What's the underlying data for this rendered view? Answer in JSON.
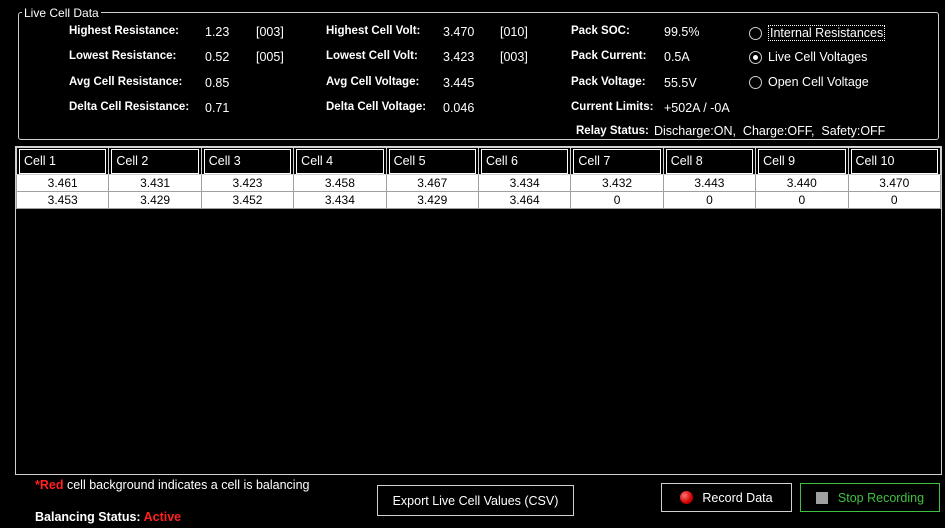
{
  "group": {
    "title": "Live Cell Data"
  },
  "stats": {
    "highest_resistance": {
      "label": "Highest Resistance:",
      "value": "1.23",
      "cell": "[003]"
    },
    "lowest_resistance": {
      "label": "Lowest Resistance:",
      "value": "0.52",
      "cell": "[005]"
    },
    "avg_resistance": {
      "label": "Avg Cell Resistance:",
      "value": "0.85"
    },
    "delta_resistance": {
      "label": "Delta Cell Resistance:",
      "value": "0.71"
    },
    "highest_volt": {
      "label": "Highest Cell Volt:",
      "value": "3.470",
      "cell": "[010]"
    },
    "lowest_volt": {
      "label": "Lowest Cell Volt:",
      "value": "3.423",
      "cell": "[003]"
    },
    "avg_voltage": {
      "label": "Avg Cell Voltage:",
      "value": "3.445"
    },
    "delta_voltage": {
      "label": "Delta Cell Voltage:",
      "value": "0.046"
    },
    "pack_soc": {
      "label": "Pack SOC:",
      "value": "99.5%"
    },
    "pack_current": {
      "label": "Pack Current:",
      "value": "0.5A"
    },
    "pack_voltage": {
      "label": "Pack Voltage:",
      "value": "55.5V"
    },
    "current_limits": {
      "label": "Current Limits:",
      "value": "+502A / -0A"
    },
    "relay_status": {
      "label": "Relay Status:",
      "value": "Discharge:ON,  Charge:OFF,  Safety:OFF"
    }
  },
  "modes": [
    {
      "label": "Internal Resistances",
      "checked": false
    },
    {
      "label": "Live Cell Voltages",
      "checked": true
    },
    {
      "label": "Open Cell Voltage",
      "checked": false
    }
  ],
  "table": {
    "columns": [
      "Cell 1",
      "Cell 2",
      "Cell 3",
      "Cell 4",
      "Cell 5",
      "Cell 6",
      "Cell 7",
      "Cell 8",
      "Cell 9",
      "Cell 10"
    ],
    "rows": [
      [
        "3.461",
        "3.431",
        "3.423",
        "3.458",
        "3.467",
        "3.434",
        "3.432",
        "3.443",
        "3.440",
        "3.470"
      ],
      [
        "3.453",
        "3.429",
        "3.452",
        "3.434",
        "3.429",
        "3.464",
        "0",
        "0",
        "0",
        "0"
      ]
    ]
  },
  "footer": {
    "note_star": "*",
    "note_red": "Red",
    "note_rest": " cell background indicates a cell is balancing",
    "balancing_label": "Balancing Status:",
    "balancing_value": "Active",
    "export_label": "Export Live Cell Values (CSV)",
    "record_label": "Record Data",
    "stop_label": "Stop Recording"
  },
  "colors": {
    "accent_red": "#ff2020",
    "stop_green": "#40c040",
    "background": "#000000"
  }
}
